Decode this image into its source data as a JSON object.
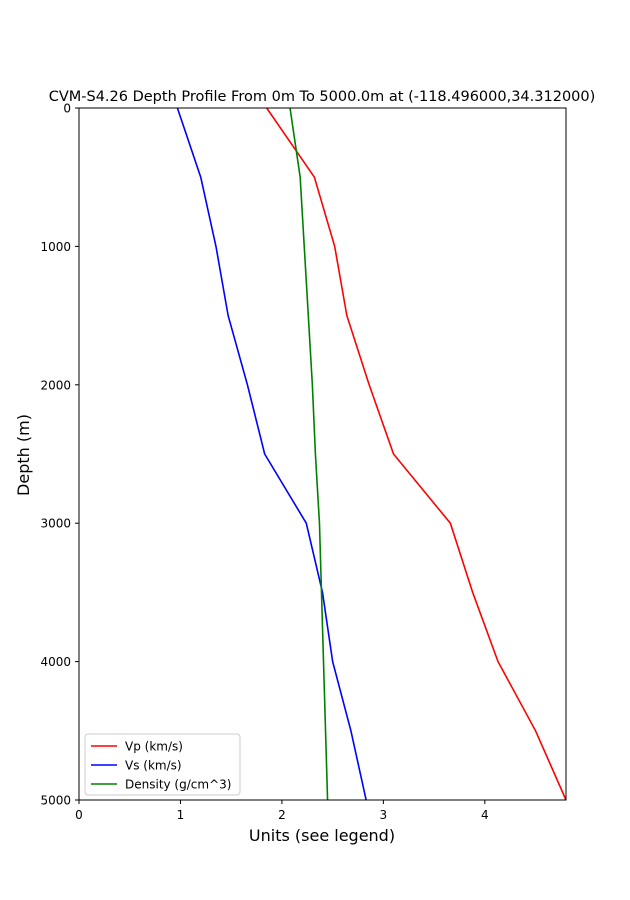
{
  "chart_data": {
    "type": "line",
    "title": "CVM-S4.26 Depth Profile From 0m To 5000.0m at (-118.496000,34.312000)",
    "xlabel": "Units (see legend)",
    "ylabel": "Depth (m)",
    "xlim": [
      0,
      4.8
    ],
    "ylim": [
      5000,
      0
    ],
    "y_inverted": true,
    "xticks": [
      0,
      1,
      2,
      3,
      4
    ],
    "yticks": [
      0,
      1000,
      2000,
      3000,
      4000,
      5000
    ],
    "grid": false,
    "legend_position": "lower-left",
    "depth": [
      0,
      500,
      1000,
      1500,
      2000,
      2500,
      3000,
      3500,
      4000,
      4500,
      5000
    ],
    "series": [
      {
        "name": "Vp (km/s)",
        "color": "#ff0000",
        "values": [
          1.85,
          2.32,
          2.52,
          2.64,
          2.86,
          3.1,
          3.66,
          3.88,
          4.13,
          4.5,
          4.8
        ]
      },
      {
        "name": "Vs (km/s)",
        "color": "#0000ff",
        "values": [
          0.97,
          1.2,
          1.35,
          1.47,
          1.66,
          1.83,
          2.24,
          2.4,
          2.5,
          2.68,
          2.83
        ]
      },
      {
        "name": "Density (g/cm^3)",
        "color": "#008000",
        "values": [
          2.08,
          2.18,
          2.22,
          2.26,
          2.3,
          2.33,
          2.37,
          2.39,
          2.41,
          2.43,
          2.45
        ]
      }
    ]
  }
}
